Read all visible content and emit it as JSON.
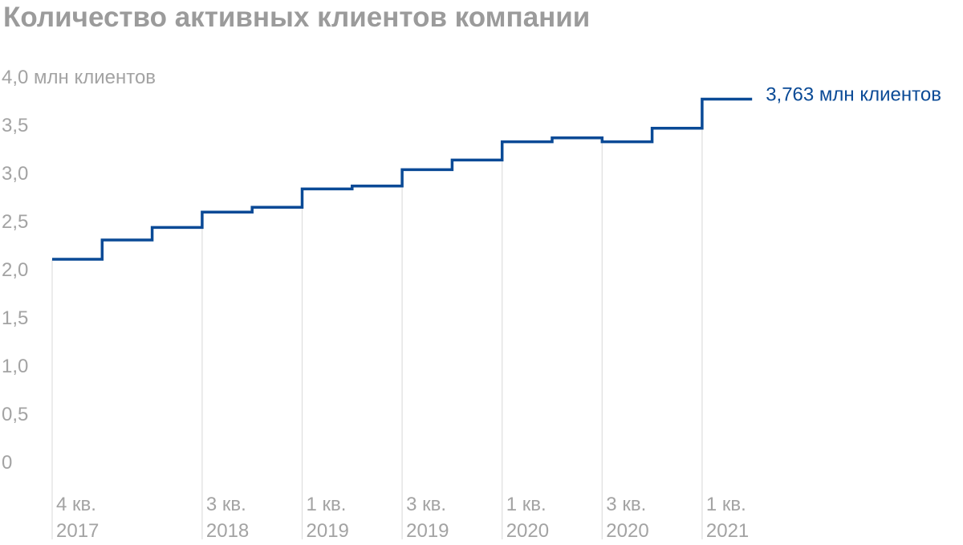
{
  "title": "Количество активных клиентов компании",
  "chart_data": {
    "type": "line",
    "step": true,
    "title": "Количество активных клиентов компании",
    "ylabel": "4,0 млн клиентов",
    "ylim": [
      0,
      4.0
    ],
    "y_ticks": [
      "0",
      "0,5",
      "1,0",
      "1,5",
      "2,0",
      "2,5",
      "3,0",
      "3,5",
      "4,0 млн клиентов"
    ],
    "x_tick_labels": [
      {
        "period": "4 кв.",
        "year": "2017"
      },
      {
        "period": "3 кв.",
        "year": "2018"
      },
      {
        "period": "1 кв.",
        "year": "2019"
      },
      {
        "period": "3 кв.",
        "year": "2019"
      },
      {
        "period": "1 кв.",
        "year": "2020"
      },
      {
        "period": "3 кв.",
        "year": "2020"
      },
      {
        "period": "1 кв.",
        "year": "2021"
      }
    ],
    "x_tick_index": [
      0,
      3,
      5,
      7,
      9,
      11,
      13
    ],
    "grid": "vertical lines at labeled quarters",
    "series": [
      {
        "color": "#0a4a96",
        "values": [
          2.1,
          2.3,
          2.43,
          2.59,
          2.64,
          2.83,
          2.86,
          3.03,
          3.13,
          3.32,
          3.36,
          3.32,
          3.46,
          3.763
        ]
      }
    ],
    "annotation": "3,763 млн клиентов"
  }
}
